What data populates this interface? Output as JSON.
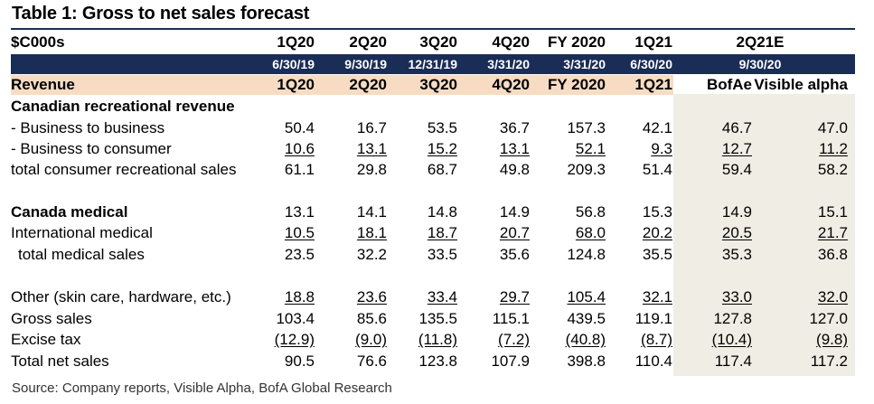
{
  "title": "Table 1: Gross to net sales forecast",
  "header": {
    "unit": "$C000s",
    "periods": [
      "1Q20",
      "2Q20",
      "3Q20",
      "4Q20",
      "FY 2020",
      "1Q21"
    ],
    "estimate_label": "2Q21E",
    "dates": [
      "6/30/19",
      "9/30/19",
      "12/31/19",
      "3/31/20",
      "3/31/20",
      "6/30/20"
    ],
    "estimate_date": "9/30/20"
  },
  "revenue_header": {
    "label": "Revenue",
    "periods": [
      "1Q20",
      "2Q20",
      "3Q20",
      "4Q20",
      "FY 2020",
      "1Q21"
    ],
    "sources": [
      "BofAe",
      "Visible alpha"
    ]
  },
  "rows": [
    {
      "label": "Canadian recreational revenue",
      "values": []
    },
    {
      "label": " - Business to business",
      "values": [
        "50.4",
        "16.7",
        "53.5",
        "36.7",
        "157.3",
        "42.1",
        "46.7",
        "47.0"
      ]
    },
    {
      "label": " - Business to consumer",
      "values": [
        "10.6",
        "13.1",
        "15.2",
        "13.1",
        "52.1",
        "9.3",
        "12.7",
        "11.2"
      ]
    },
    {
      "label": "total consumer recreational sales",
      "values": [
        "61.1",
        "29.8",
        "68.7",
        "49.8",
        "209.3",
        "51.4",
        "59.4",
        "58.2"
      ]
    },
    {
      "label": "Canada medical",
      "values": [
        "13.1",
        "14.1",
        "14.8",
        "14.9",
        "56.8",
        "15.3",
        "14.9",
        "15.1"
      ]
    },
    {
      "label": "International medical",
      "values": [
        "10.5",
        "18.1",
        "18.7",
        "20.7",
        "68.0",
        "20.2",
        "20.5",
        "21.7"
      ]
    },
    {
      "label": "total medical sales",
      "values": [
        "23.5",
        "32.2",
        "33.5",
        "35.6",
        "124.8",
        "35.5",
        "35.3",
        "36.8"
      ]
    },
    {
      "label": "Other (skin care, hardware, etc.)",
      "values": [
        "18.8",
        "23.6",
        "33.4",
        "29.7",
        "105.4",
        "32.1",
        "33.0",
        "32.0"
      ]
    },
    {
      "label": "Gross sales",
      "values": [
        "103.4",
        "85.6",
        "135.5",
        "115.1",
        "439.5",
        "119.1",
        "127.8",
        "127.0"
      ]
    },
    {
      "label": "Excise tax",
      "values": [
        "(12.9)",
        "(9.0)",
        "(11.8)",
        "(7.2)",
        "(40.8)",
        "(8.7)",
        "(10.4)",
        "(9.8)"
      ]
    },
    {
      "label": "Total net sales",
      "values": [
        "90.5",
        "76.6",
        "123.8",
        "107.9",
        "398.8",
        "110.4",
        "117.4",
        "117.2"
      ]
    }
  ],
  "source": "Source: Company reports, Visible Alpha, BofA Global Research",
  "colors": {
    "header_band": "#1a2d57",
    "revenue_band": "#f7dcc3",
    "estimate_shade": "#f0ede4"
  }
}
